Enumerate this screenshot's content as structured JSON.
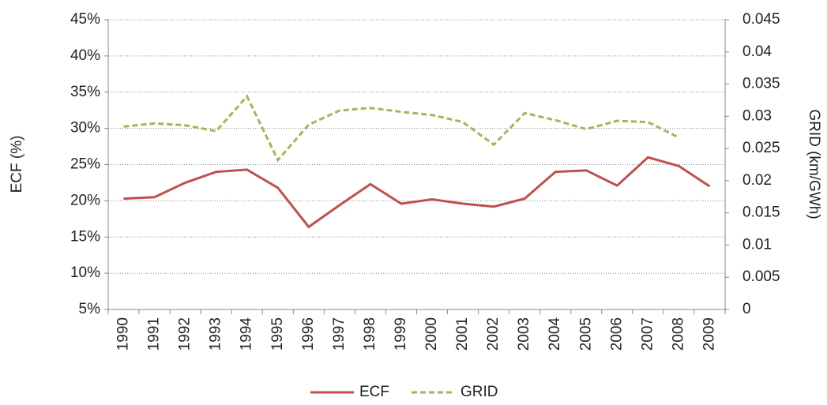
{
  "chart_data": {
    "type": "line",
    "y_label": "ECF (%)",
    "y2_label": "GRID (km/GWh)",
    "categories": [
      "1990",
      "1991",
      "1992",
      "1993",
      "1994",
      "1995",
      "1996",
      "1997",
      "1998",
      "1999",
      "2000",
      "2001",
      "2002",
      "2003",
      "2004",
      "2005",
      "2006",
      "2007",
      "2008",
      "2009"
    ],
    "series": [
      {
        "name": "ECF",
        "color": "#c0504d",
        "dashed": false,
        "values": [
          20.3,
          20.5,
          22.5,
          24.0,
          24.3,
          21.8,
          16.4,
          19.4,
          22.3,
          19.6,
          20.2,
          19.6,
          19.2,
          20.3,
          24.0,
          24.2,
          22.1,
          26.0,
          24.8,
          22.0
        ]
      },
      {
        "name": "GRID",
        "color": "#9bbb59",
        "dashed": true,
        "axis": "y2",
        "values": [
          0.0284,
          0.0289,
          0.0286,
          0.0277,
          0.0331,
          0.0232,
          0.0287,
          0.0309,
          0.0313,
          0.0307,
          0.0302,
          0.0291,
          0.0256,
          0.0305,
          0.0294,
          0.028,
          0.0293,
          0.0291,
          0.0267,
          null
        ]
      }
    ],
    "ylim": [
      5,
      45
    ],
    "yticks": [
      {
        "value": 5,
        "label": "5%"
      },
      {
        "value": 10,
        "label": "10%"
      },
      {
        "value": 15,
        "label": "15%"
      },
      {
        "value": 20,
        "label": "20%"
      },
      {
        "value": 25,
        "label": "25%"
      },
      {
        "value": 30,
        "label": "30%"
      },
      {
        "value": 35,
        "label": "35%"
      },
      {
        "value": 40,
        "label": "40%"
      },
      {
        "value": 45,
        "label": "45%"
      }
    ],
    "y2lim": [
      0,
      0.045
    ],
    "y2ticks": [
      0,
      0.005,
      0.01,
      0.015,
      0.02,
      0.025,
      0.03,
      0.035,
      0.04,
      0.045
    ],
    "grid": true,
    "legend": "bottom"
  }
}
